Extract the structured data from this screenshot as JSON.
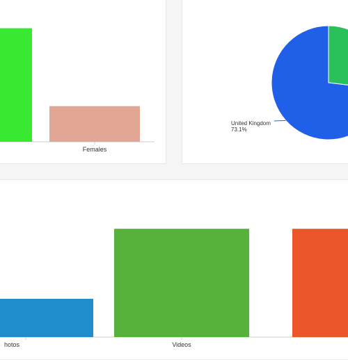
{
  "colors": {
    "page_background": "#f5f5f5",
    "card_background": "#ffffff",
    "axis": "#cccccc"
  },
  "chart_data": [
    {
      "type": "bar",
      "categories": [
        "",
        "Females"
      ],
      "category_labels_visible": [
        "",
        "Females"
      ],
      "values": [
        86,
        27
      ],
      "colors": [
        "#39e830",
        "#e2a794"
      ],
      "ylim": [
        0,
        100
      ],
      "title": "",
      "xlabel": "",
      "ylabel": ""
    },
    {
      "type": "pie",
      "start_angle_deg": 0,
      "slices": [
        {
          "label": "",
          "value": 26.9,
          "color": "#2bc15a"
        },
        {
          "label": "United Kingdom",
          "value": 73.1,
          "value_label": "73.1%",
          "color": "#2060e8"
        }
      ]
    },
    {
      "type": "bar",
      "categories": [
        "Photos",
        "Videos",
        ""
      ],
      "category_labels_visible": [
        "hotos",
        "Videos",
        ""
      ],
      "values": [
        29,
        82,
        82
      ],
      "colors": [
        "#1e8dca",
        "#57b23c",
        "#ea5629"
      ],
      "ylim": [
        0,
        100
      ],
      "title": "",
      "xlabel": "",
      "ylabel": ""
    }
  ]
}
